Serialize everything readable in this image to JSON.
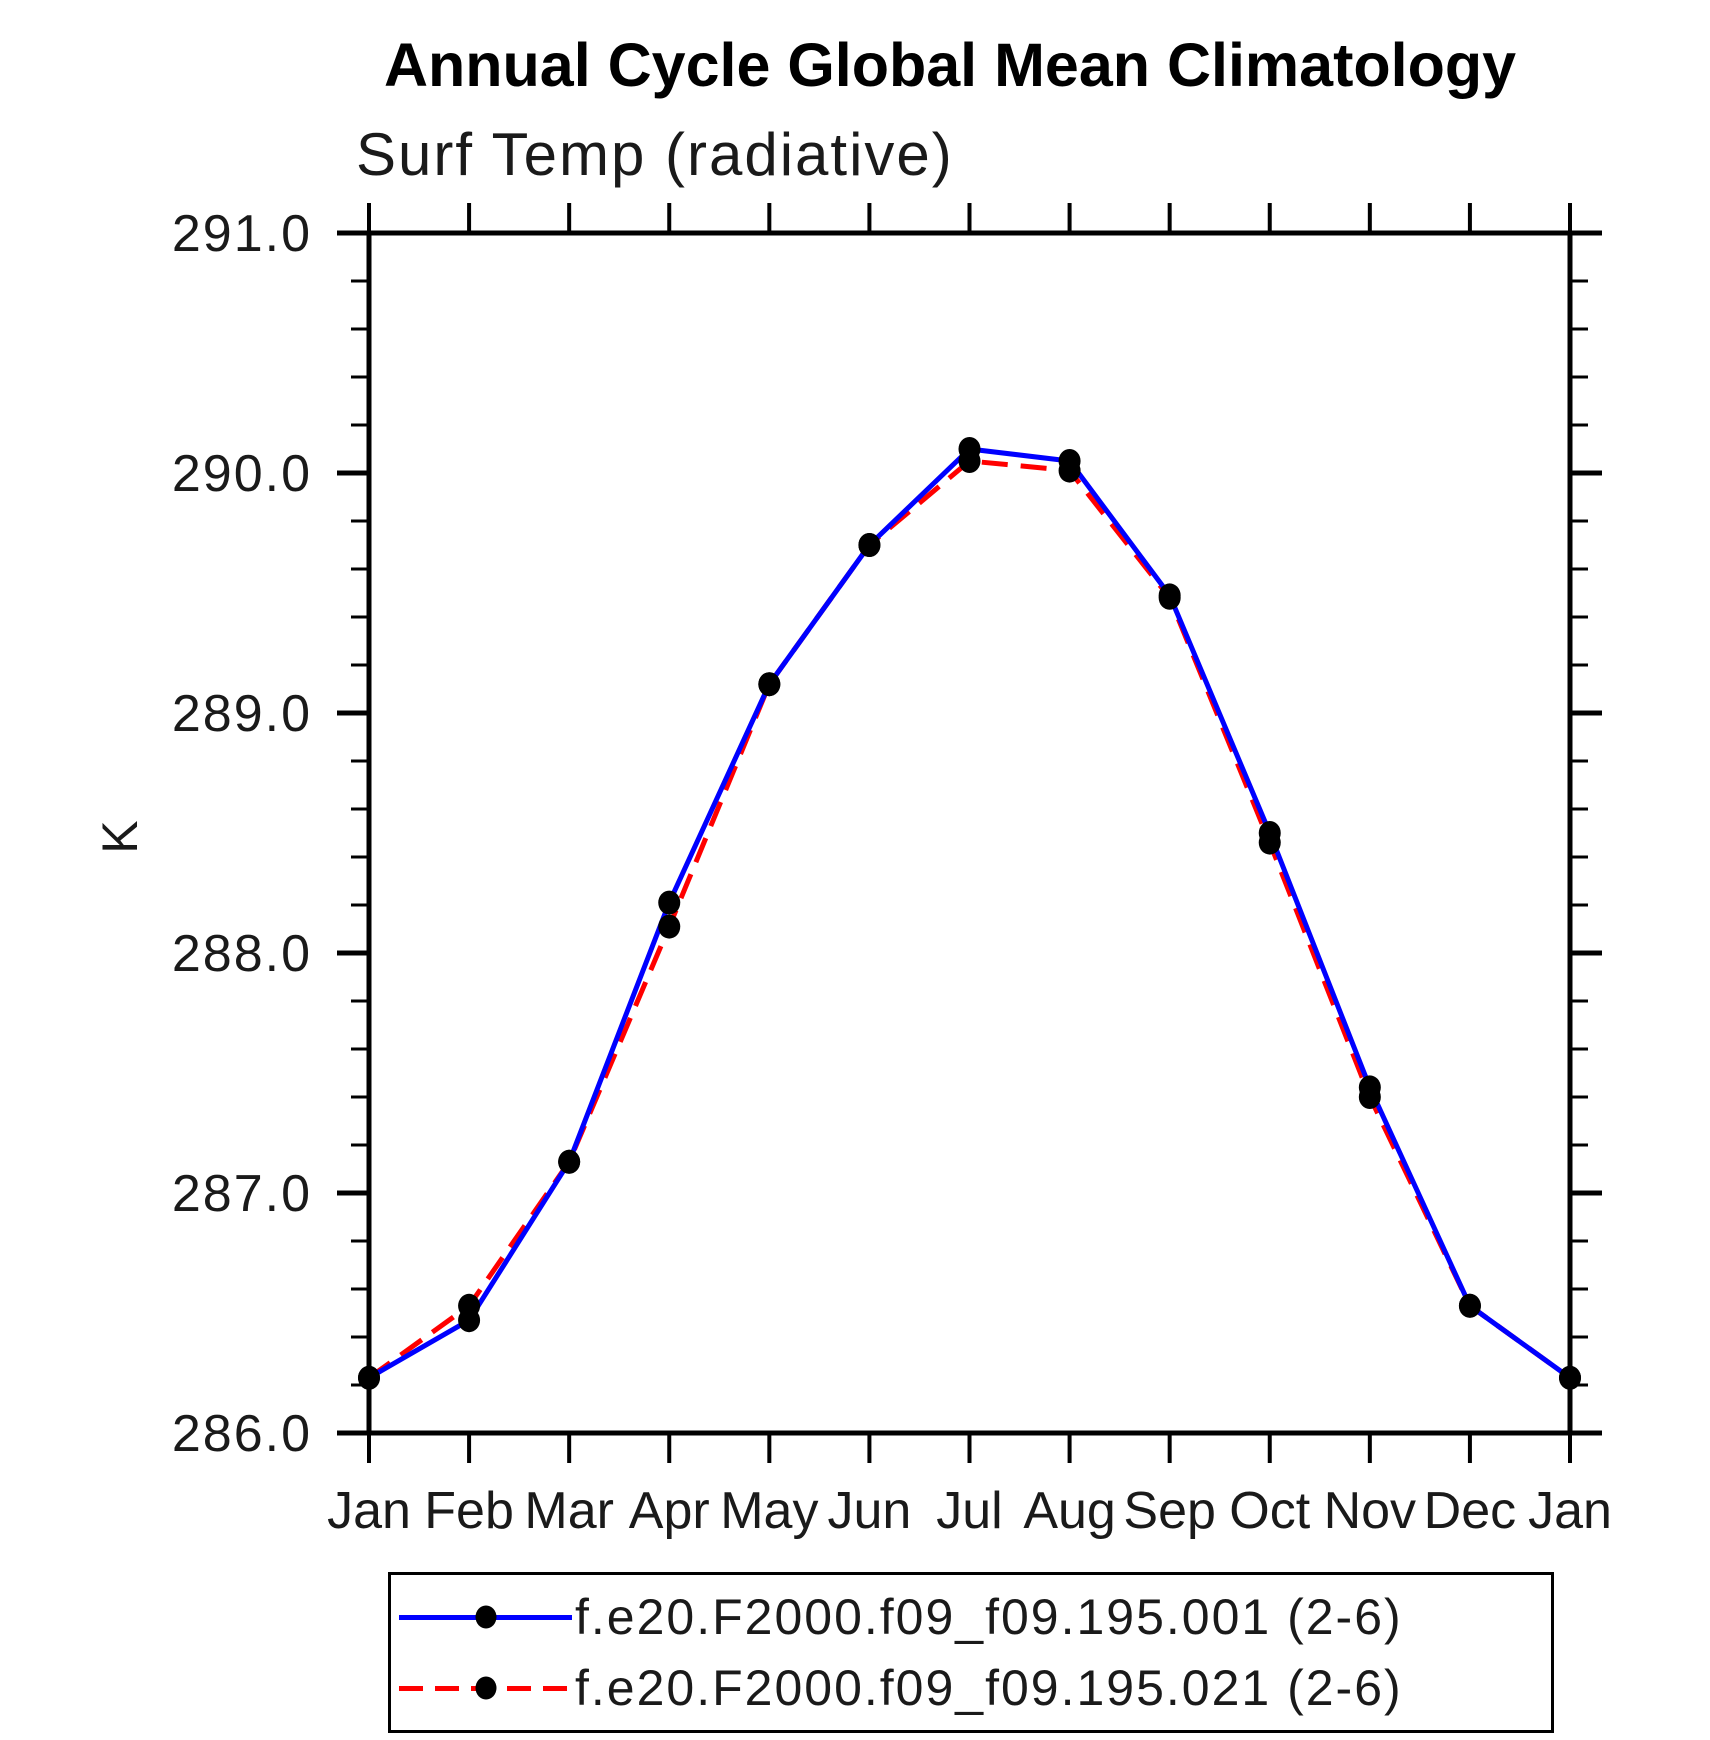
{
  "figure": {
    "title": "Annual Cycle Global Mean Climatology",
    "subtitle": "Surf Temp (radiative)",
    "ylabel": "K"
  },
  "chart_data": {
    "type": "line",
    "title": "Annual Cycle Global Mean Climatology",
    "subtitle": "Surf Temp (radiative)",
    "xlabel": "",
    "ylabel": "K",
    "categories": [
      "Jan",
      "Feb",
      "Mar",
      "Apr",
      "May",
      "Jun",
      "Jul",
      "Aug",
      "Sep",
      "Oct",
      "Nov",
      "Dec",
      "Jan"
    ],
    "ylim": [
      286.0,
      291.0
    ],
    "ytick_major": 1.0,
    "ytick_minor": 0.2,
    "ytick_labels": [
      "286.0",
      "287.0",
      "288.0",
      "289.0",
      "290.0",
      "291.0"
    ],
    "grid": false,
    "legend_position": "bottom",
    "axis_color": "#000000",
    "text_color": "#1a1a1a",
    "series": [
      {
        "name": "f.e20.F2000.f09_f09.195.001 (2-6)",
        "color": "#0000ff",
        "line_style": "solid",
        "marker": "filled-circle",
        "marker_color": "#000000",
        "values": [
          286.23,
          286.47,
          287.13,
          288.21,
          289.12,
          289.7,
          290.1,
          290.05,
          289.49,
          288.5,
          287.44,
          286.53,
          286.23
        ]
      },
      {
        "name": "f.e20.F2000.f09_f09.195.021 (2-6)",
        "color": "#ff0000",
        "line_style": "dashed",
        "marker": "filled-circle",
        "marker_color": "#000000",
        "values": [
          286.23,
          286.53,
          287.13,
          288.11,
          289.12,
          289.7,
          290.05,
          290.01,
          289.48,
          288.46,
          287.4,
          286.53,
          286.23
        ]
      }
    ]
  }
}
